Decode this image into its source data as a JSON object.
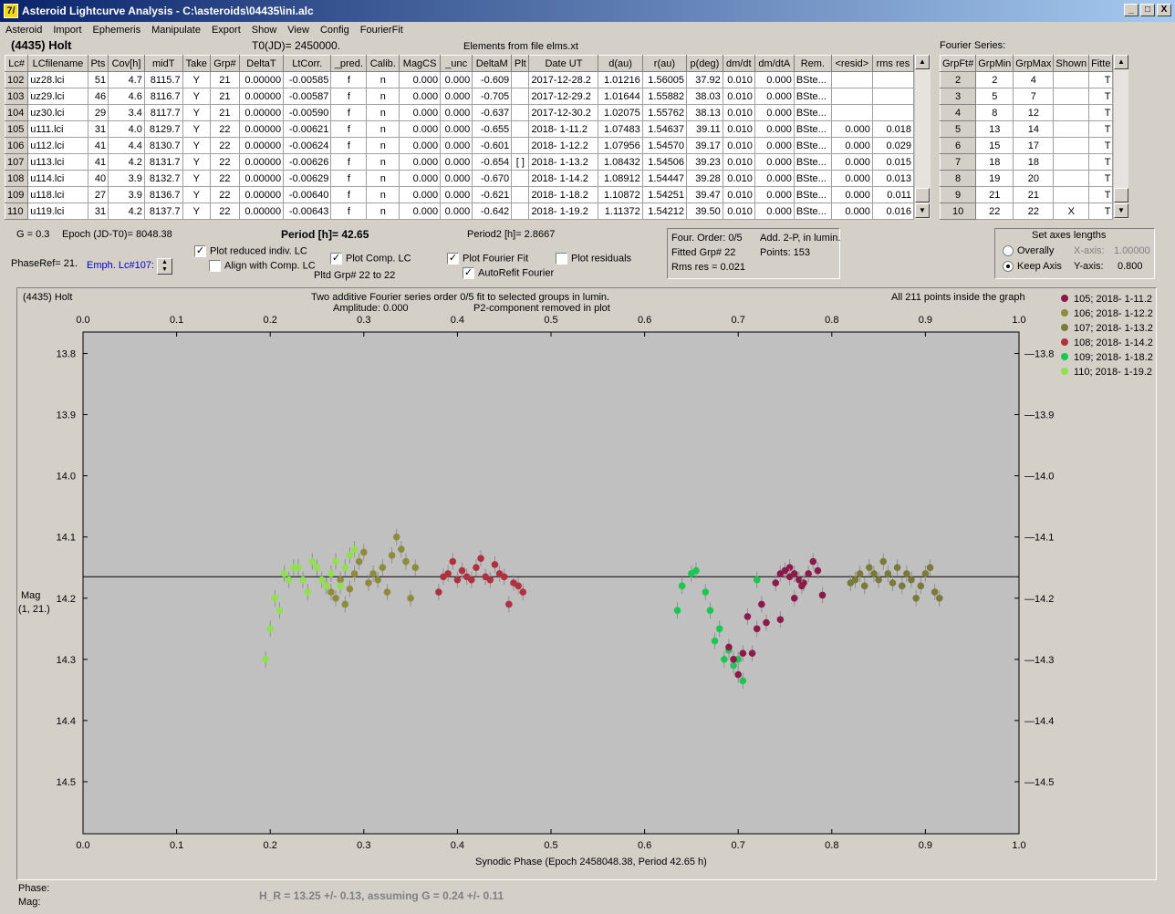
{
  "window": {
    "title": "Asteroid Lightcurve Analysis - C:\\asteroids\\04435\\ini.alc",
    "app_icon": "7/",
    "min": "_",
    "max": "□",
    "close": "X"
  },
  "menu": [
    "Asteroid",
    "Import",
    "Ephemeris",
    "Manipulate",
    "Export",
    "Show",
    "View",
    "Config",
    "FourierFit"
  ],
  "header": {
    "asteroid": "(4435) Holt",
    "t0": "T0(JD)= 2450000.",
    "elements": "Elements from file elms.xt",
    "fourier_series": "Fourier Series:"
  },
  "table": {
    "columns": [
      "Lc#",
      "LCfilename",
      "Pts",
      "Cov[h]",
      "midT",
      "Take",
      "Grp#",
      "DeltaT",
      "LtCorr.",
      "_pred.",
      "Calib.",
      "MagCS",
      "_unc",
      "DeltaM",
      "Plt",
      "Date UT",
      "d(au)",
      "r(au)",
      "p(deg)",
      "dm/dt",
      "dm/dtA",
      "Rem.",
      "<resid>",
      "rms res"
    ],
    "rows": [
      [
        "102",
        "uz28.lci",
        "51",
        "4.7",
        "8115.7",
        "Y",
        "21",
        "0.00000",
        "-0.00585",
        "f",
        "n",
        "0.000",
        "0.000",
        "-0.609",
        "",
        "2017-12-28.2",
        "1.01216",
        "1.56005",
        "37.92",
        "0.010",
        "0.000",
        "BSte...",
        "",
        ""
      ],
      [
        "103",
        "uz29.lci",
        "46",
        "4.6",
        "8116.7",
        "Y",
        "21",
        "0.00000",
        "-0.00587",
        "f",
        "n",
        "0.000",
        "0.000",
        "-0.705",
        "",
        "2017-12-29.2",
        "1.01644",
        "1.55882",
        "38.03",
        "0.010",
        "0.000",
        "BSte...",
        "",
        ""
      ],
      [
        "104",
        "uz30.lci",
        "29",
        "3.4",
        "8117.7",
        "Y",
        "21",
        "0.00000",
        "-0.00590",
        "f",
        "n",
        "0.000",
        "0.000",
        "-0.637",
        "",
        "2017-12-30.2",
        "1.02075",
        "1.55762",
        "38.13",
        "0.010",
        "0.000",
        "BSte...",
        "",
        ""
      ],
      [
        "105",
        "u111.lci",
        "31",
        "4.0",
        "8129.7",
        "Y",
        "22",
        "0.00000",
        "-0.00621",
        "f",
        "n",
        "0.000",
        "0.000",
        "-0.655",
        "",
        "2018- 1-11.2",
        "1.07483",
        "1.54637",
        "39.11",
        "0.010",
        "0.000",
        "BSte...",
        "0.000",
        "0.018"
      ],
      [
        "106",
        "u112.lci",
        "41",
        "4.4",
        "8130.7",
        "Y",
        "22",
        "0.00000",
        "-0.00624",
        "f",
        "n",
        "0.000",
        "0.000",
        "-0.601",
        "",
        "2018- 1-12.2",
        "1.07956",
        "1.54570",
        "39.17",
        "0.010",
        "0.000",
        "BSte...",
        "0.000",
        "0.029"
      ],
      [
        "107",
        "u113.lci",
        "41",
        "4.2",
        "8131.7",
        "Y",
        "22",
        "0.00000",
        "-0.00626",
        "f",
        "n",
        "0.000",
        "0.000",
        "-0.654",
        "[ ]",
        "2018- 1-13.2",
        "1.08432",
        "1.54506",
        "39.23",
        "0.010",
        "0.000",
        "BSte...",
        "0.000",
        "0.015"
      ],
      [
        "108",
        "u114.lci",
        "40",
        "3.9",
        "8132.7",
        "Y",
        "22",
        "0.00000",
        "-0.00629",
        "f",
        "n",
        "0.000",
        "0.000",
        "-0.670",
        "",
        "2018- 1-14.2",
        "1.08912",
        "1.54447",
        "39.28",
        "0.010",
        "0.000",
        "BSte...",
        "0.000",
        "0.013"
      ],
      [
        "109",
        "u118.lci",
        "27",
        "3.9",
        "8136.7",
        "Y",
        "22",
        "0.00000",
        "-0.00640",
        "f",
        "n",
        "0.000",
        "0.000",
        "-0.621",
        "",
        "2018- 1-18.2",
        "1.10872",
        "1.54251",
        "39.47",
        "0.010",
        "0.000",
        "BSte...",
        "0.000",
        "0.011"
      ],
      [
        "110",
        "u119.lci",
        "31",
        "4.2",
        "8137.7",
        "Y",
        "22",
        "0.00000",
        "-0.00643",
        "f",
        "n",
        "0.000",
        "0.000",
        "-0.642",
        "",
        "2018- 1-19.2",
        "1.11372",
        "1.54212",
        "39.50",
        "0.010",
        "0.000",
        "BSte...",
        "0.000",
        "0.016"
      ]
    ]
  },
  "fourier_table": {
    "columns": [
      "GrpFt#",
      "GrpMin",
      "GrpMax",
      "Shown",
      "Fitte"
    ],
    "rows": [
      [
        "2",
        "2",
        "4",
        "",
        "T"
      ],
      [
        "3",
        "5",
        "7",
        "",
        "T"
      ],
      [
        "4",
        "8",
        "12",
        "",
        "T"
      ],
      [
        "5",
        "13",
        "14",
        "",
        "T"
      ],
      [
        "6",
        "15",
        "17",
        "",
        "T"
      ],
      [
        "7",
        "18",
        "18",
        "",
        "T"
      ],
      [
        "8",
        "19",
        "20",
        "",
        "T"
      ],
      [
        "9",
        "21",
        "21",
        "",
        "T"
      ],
      [
        "10",
        "22",
        "22",
        "X",
        "T"
      ]
    ]
  },
  "controls": {
    "g": "G = 0.3",
    "epoch": "Epoch (JD-T0)= 8048.38",
    "period": "Period [h]= 42.65",
    "period2": "Period2 [h]= 2.8667",
    "phaseref": "PhaseRef= 21.",
    "emph": "Emph. Lc#107:",
    "plot_reduced": "Plot reduced indiv. LC",
    "align": "Align with Comp. LC",
    "plot_comp": "Plot Comp. LC",
    "pltd_grp": "Pltd Grp#  22 to   22",
    "plot_fourier": "Plot Fourier Fit",
    "autorefit": "AutoRefit Fourier",
    "plot_resid": "Plot residuals",
    "four_order": "Four. Order:  0/5",
    "add2p": "Add. 2-P, in lumin.",
    "fitted_grp": "Fitted Grp# 22",
    "points": "Points: 153",
    "rms": "Rms res      = 0.021",
    "axes_title": "Set axes lengths",
    "overally": "Overally",
    "keep": "Keep Axis",
    "xaxis_lbl": "X-axis:",
    "xaxis_val": "1.00000",
    "yaxis_lbl": "Y-axis:",
    "yaxis_val": "0.800"
  },
  "plot": {
    "name": "(4435) Holt",
    "title1": "Two additive Fourier series order 0/5 fit to selected groups in lumin.",
    "title2": "Amplitude: 0.000",
    "title3": "P2-component removed in plot",
    "allpts": "All 211 points inside the graph",
    "ylabel1": "Mag",
    "ylabel2": "(1, 21.)",
    "xlabel": "Synodic Phase (Epoch 2458048.38, Period 42.65 h)",
    "phase": "Phase:",
    "mag": "Mag:",
    "hr": "H_R = 13.25 +/- 0.13, assuming G = 0.24 +/- 0.11"
  },
  "chart_data": {
    "type": "scatter",
    "xlim": [
      0.0,
      1.0
    ],
    "ylim": [
      14.6,
      13.75
    ],
    "xticks": [
      "0.0",
      "0.1",
      "0.2",
      "0.3",
      "0.4",
      "0.5",
      "0.6",
      "0.7",
      "0.8",
      "0.9",
      "1.0"
    ],
    "yticks": [
      "13.8",
      "13.9",
      "14.0",
      "14.1",
      "14.2",
      "14.3",
      "14.4",
      "14.5"
    ],
    "fit_line": 14.165,
    "series": [
      {
        "name": "105; 2018- 1-11.2",
        "color": "#8b1a4a",
        "x": [
          0.745,
          0.75,
          0.755,
          0.76,
          0.765,
          0.77,
          0.775,
          0.78,
          0.785,
          0.79,
          0.76,
          0.768,
          0.755
        ],
        "y": [
          14.16,
          14.155,
          14.15,
          14.16,
          14.17,
          14.175,
          14.16,
          14.14,
          14.155,
          14.195,
          14.2,
          14.18,
          14.165
        ]
      },
      {
        "name": "106; 2018- 1-12.2",
        "color": "#8c8c3c",
        "x": [
          0.26,
          0.265,
          0.27,
          0.275,
          0.28,
          0.285,
          0.29,
          0.295,
          0.3,
          0.305,
          0.31,
          0.315,
          0.32,
          0.325,
          0.33,
          0.335,
          0.34,
          0.345,
          0.35,
          0.355
        ],
        "y": [
          14.18,
          14.19,
          14.2,
          14.17,
          14.21,
          14.185,
          14.16,
          14.14,
          14.125,
          14.175,
          14.16,
          14.17,
          14.15,
          14.19,
          14.13,
          14.1,
          14.12,
          14.14,
          14.2,
          14.15
        ]
      },
      {
        "name": "107; 2018- 1-13.2",
        "color": "#7a7a3a",
        "x": [
          0.82,
          0.825,
          0.83,
          0.835,
          0.84,
          0.845,
          0.85,
          0.855,
          0.86,
          0.865,
          0.87,
          0.875,
          0.88,
          0.885,
          0.89,
          0.895,
          0.9,
          0.905,
          0.91,
          0.915
        ],
        "y": [
          14.175,
          14.17,
          14.16,
          14.18,
          14.15,
          14.16,
          14.17,
          14.14,
          14.16,
          14.175,
          14.15,
          14.18,
          14.16,
          14.17,
          14.2,
          14.18,
          14.16,
          14.15,
          14.19,
          14.2
        ]
      },
      {
        "name": "108; 2018- 1-14.2",
        "color": "#b0303f",
        "x": [
          0.38,
          0.385,
          0.39,
          0.395,
          0.4,
          0.405,
          0.41,
          0.415,
          0.42,
          0.425,
          0.43,
          0.435,
          0.44,
          0.445,
          0.45,
          0.455,
          0.46,
          0.465,
          0.47
        ],
        "y": [
          14.19,
          14.165,
          14.16,
          14.14,
          14.17,
          14.155,
          14.165,
          14.17,
          14.15,
          14.135,
          14.165,
          14.17,
          14.145,
          14.16,
          14.165,
          14.21,
          14.175,
          14.18,
          14.19
        ]
      },
      {
        "name": "109; 2018- 1-18.2",
        "color": "#18c850",
        "x": [
          0.635,
          0.64,
          0.65,
          0.655,
          0.665,
          0.67,
          0.675,
          0.68,
          0.685,
          0.69,
          0.695,
          0.7,
          0.705,
          0.72
        ],
        "y": [
          14.22,
          14.18,
          14.16,
          14.155,
          14.19,
          14.22,
          14.27,
          14.25,
          14.3,
          14.285,
          14.31,
          14.3,
          14.335,
          14.17
        ]
      },
      {
        "name": "110; 2018- 1-19.2",
        "color": "#90e050",
        "x": [
          0.195,
          0.2,
          0.205,
          0.21,
          0.215,
          0.22,
          0.225,
          0.23,
          0.235,
          0.24,
          0.245,
          0.25,
          0.255,
          0.26,
          0.265,
          0.27,
          0.275,
          0.28,
          0.285,
          0.29
        ],
        "y": [
          14.3,
          14.25,
          14.2,
          14.22,
          14.16,
          14.17,
          14.15,
          14.15,
          14.17,
          14.19,
          14.14,
          14.15,
          14.17,
          14.18,
          14.16,
          14.14,
          14.18,
          14.15,
          14.13,
          14.12
        ]
      },
      {
        "name": "",
        "color": "#8b1a4a",
        "x": [
          0.69,
          0.695,
          0.7,
          0.705,
          0.71,
          0.715,
          0.72,
          0.725,
          0.73,
          0.74,
          0.745
        ],
        "y": [
          14.28,
          14.3,
          14.325,
          14.29,
          14.23,
          14.29,
          14.25,
          14.21,
          14.24,
          14.175,
          14.235
        ]
      }
    ]
  }
}
